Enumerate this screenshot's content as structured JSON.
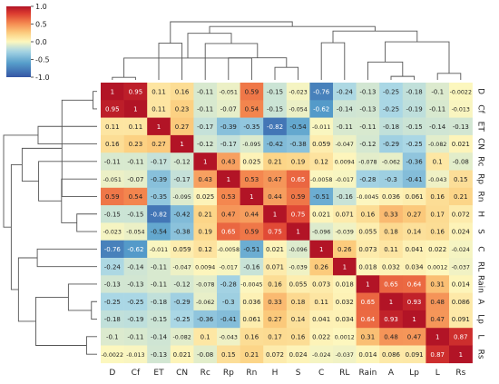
{
  "chart_data": {
    "type": "heatmap",
    "title": "",
    "variables": [
      "D",
      "Cf",
      "ET",
      "CN",
      "Rc",
      "Rp",
      "Rn",
      "H",
      "S",
      "C",
      "RL",
      "Rain",
      "A",
      "Lp",
      "L",
      "Rs"
    ],
    "row_labels": [
      "D",
      "Cf",
      "ET",
      "CN",
      "Rc",
      "Rp",
      "Rn",
      "H",
      "S",
      "C",
      "RL",
      "Rain",
      "A",
      "Lp",
      "L",
      "Rs"
    ],
    "col_labels": [
      "D",
      "Cf",
      "ET",
      "CN",
      "Rc",
      "Rp",
      "Rn",
      "H",
      "S",
      "C",
      "RL",
      "Rain",
      "A",
      "Lp",
      "L",
      "Rs"
    ],
    "matrix": [
      [
        "1",
        "0.95",
        "0.11",
        "0.16",
        "-0.11",
        "-0.051",
        "0.59",
        "-0.15",
        "-0.023",
        "-0.76",
        "-0.24",
        "-0.13",
        "-0.25",
        "-0.18",
        "-0.1",
        "-0.0022"
      ],
      [
        "0.95",
        "1",
        "0.11",
        "0.23",
        "-0.11",
        "-0.07",
        "0.54",
        "-0.15",
        "-0.054",
        "-0.62",
        "-0.14",
        "-0.13",
        "-0.25",
        "-0.19",
        "-0.11",
        "-0.013"
      ],
      [
        "0.11",
        "0.11",
        "1",
        "0.27",
        "-0.17",
        "-0.39",
        "-0.35",
        "-0.82",
        "-0.54",
        "-0.011",
        "-0.11",
        "-0.11",
        "-0.18",
        "-0.15",
        "-0.14",
        "-0.13"
      ],
      [
        "0.16",
        "0.23",
        "0.27",
        "1",
        "-0.12",
        "-0.17",
        "-0.095",
        "-0.42",
        "-0.38",
        "0.059",
        "-0.047",
        "-0.12",
        "-0.29",
        "-0.25",
        "-0.082",
        "0.021"
      ],
      [
        "-0.11",
        "-0.11",
        "-0.17",
        "-0.12",
        "1",
        "0.43",
        "0.025",
        "0.21",
        "0.19",
        "0.12",
        "0.0094",
        "-0.078",
        "-0.062",
        "-0.36",
        "0.1",
        "-0.08"
      ],
      [
        "-0.051",
        "-0.07",
        "-0.39",
        "-0.17",
        "0.43",
        "1",
        "0.53",
        "0.47",
        "0.65",
        "-0.0058",
        "-0.017",
        "-0.28",
        "-0.3",
        "-0.41",
        "-0.043",
        "0.15"
      ],
      [
        "0.59",
        "0.54",
        "-0.35",
        "-0.095",
        "0.025",
        "0.53",
        "1",
        "0.44",
        "0.59",
        "-0.51",
        "-0.16",
        "-0.0045",
        "0.036",
        "0.061",
        "0.16",
        "0.21"
      ],
      [
        "-0.15",
        "-0.15",
        "-0.82",
        "-0.42",
        "0.21",
        "0.47",
        "0.44",
        "1",
        "0.75",
        "0.021",
        "0.071",
        "0.16",
        "0.33",
        "0.27",
        "0.17",
        "0.072"
      ],
      [
        "-0.023",
        "-0.054",
        "-0.54",
        "-0.38",
        "0.19",
        "0.65",
        "0.59",
        "0.75",
        "1",
        "-0.096",
        "-0.039",
        "0.055",
        "0.18",
        "0.14",
        "0.16",
        "0.024"
      ],
      [
        "-0.76",
        "-0.62",
        "-0.011",
        "0.059",
        "0.12",
        "-0.0058",
        "-0.51",
        "0.021",
        "-0.096",
        "1",
        "0.26",
        "0.073",
        "0.11",
        "0.041",
        "0.022",
        "-0.024"
      ],
      [
        "-0.24",
        "-0.14",
        "-0.11",
        "-0.047",
        "0.0094",
        "-0.017",
        "-0.16",
        "0.071",
        "-0.039",
        "0.26",
        "1",
        "0.018",
        "0.032",
        "0.034",
        "0.0012",
        "-0.037"
      ],
      [
        "-0.13",
        "-0.13",
        "-0.11",
        "-0.12",
        "-0.078",
        "-0.28",
        "-0.0045",
        "0.16",
        "0.055",
        "0.073",
        "0.018",
        "1",
        "0.65",
        "0.64",
        "0.31",
        "0.014"
      ],
      [
        "-0.25",
        "-0.25",
        "-0.18",
        "-0.29",
        "-0.062",
        "-0.3",
        "0.036",
        "0.33",
        "0.18",
        "0.11",
        "0.032",
        "0.65",
        "1",
        "0.93",
        "0.48",
        "0.086"
      ],
      [
        "-0.18",
        "-0.19",
        "-0.15",
        "-0.25",
        "-0.36",
        "-0.41",
        "0.061",
        "0.27",
        "0.14",
        "0.041",
        "0.034",
        "0.64",
        "0.93",
        "1",
        "0.47",
        "0.091"
      ],
      [
        "-0.1",
        "-0.11",
        "-0.14",
        "-0.082",
        "0.1",
        "-0.043",
        "0.16",
        "0.17",
        "0.16",
        "0.022",
        "0.0012",
        "0.31",
        "0.48",
        "0.47",
        "1",
        "0.87"
      ],
      [
        "-0.0022",
        "-0.013",
        "-0.13",
        "0.021",
        "-0.08",
        "0.15",
        "0.21",
        "0.072",
        "0.024",
        "-0.024",
        "-0.037",
        "0.014",
        "0.086",
        "0.091",
        "0.87",
        "1"
      ]
    ],
    "colorbar": {
      "range": [
        -1.0,
        1.0
      ],
      "ticks": [
        "1.0",
        "0.5",
        "0.0",
        "-0.5",
        "-1.0"
      ],
      "colormap": "diverging blue-yellow-red",
      "placement": "top-left"
    },
    "column_dendrogram": {
      "placement": "top",
      "leaf_order": [
        "D",
        "Cf",
        "ET",
        "CN",
        "Rc",
        "Rp",
        "Rn",
        "H",
        "S",
        "C",
        "RL",
        "Rain",
        "A",
        "Lp",
        "L",
        "Rs"
      ]
    },
    "row_dendrogram": {
      "placement": "left",
      "leaf_order": [
        "D",
        "Cf",
        "ET",
        "CN",
        "Rc",
        "Rp",
        "Rn",
        "H",
        "S",
        "C",
        "RL",
        "Rain",
        "A",
        "Lp",
        "L",
        "Rs"
      ]
    },
    "colors": {
      "high": "#b40426",
      "mid": "#fdf5bd",
      "low": "#3b4cc0"
    }
  }
}
